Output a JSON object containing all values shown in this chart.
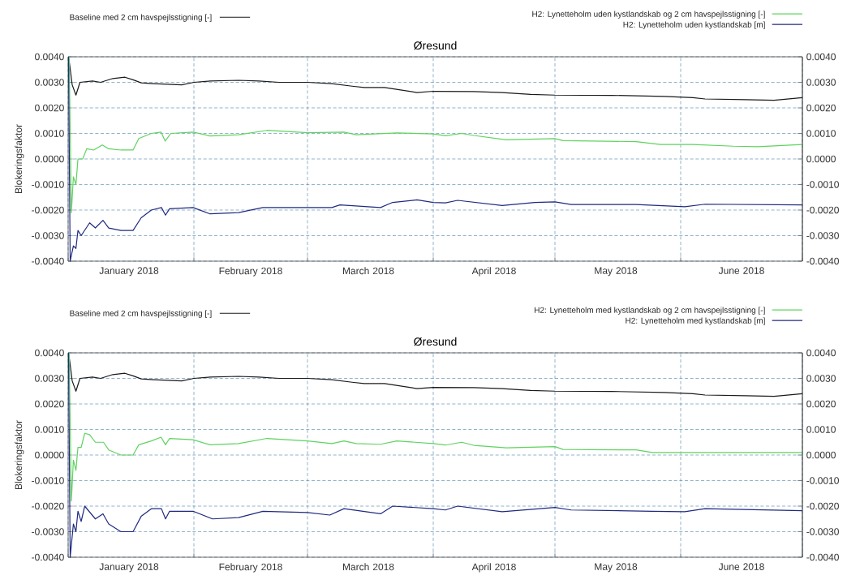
{
  "chart_data": [
    {
      "type": "line",
      "title": "Øresund",
      "ylabel": "Blokeringsfaktor",
      "grid": true,
      "legend": "top",
      "xlim": [
        "2018-01-01",
        "2018-07-01"
      ],
      "xticks": [
        {
          "value": "2018-01-01",
          "label": null
        },
        {
          "value": "2018-02-01",
          "label": null
        },
        {
          "value": "2018-03-01",
          "label": null
        },
        {
          "value": "2018-04-01",
          "label": null
        },
        {
          "value": "2018-05-01",
          "label": null
        },
        {
          "value": "2018-06-01",
          "label": null
        },
        {
          "value": "2018-07-01",
          "label": null
        },
        {
          "value": "2018-01-16",
          "label": "January 2018"
        },
        {
          "value": "2018-02-15",
          "label": "February 2018"
        },
        {
          "value": "2018-03-16",
          "label": "March 2018"
        },
        {
          "value": "2018-04-16",
          "label": "April 2018"
        },
        {
          "value": "2018-05-16",
          "label": "May 2018"
        },
        {
          "value": "2018-06-16",
          "label": "June 2018"
        }
      ],
      "ylim": [
        -0.004,
        0.004
      ],
      "yticks": [
        {
          "value": -0.004,
          "label": "-0.0040"
        },
        {
          "value": -0.003,
          "label": "-0.0030"
        },
        {
          "value": -0.002,
          "label": "-0.0020"
        },
        {
          "value": -0.001,
          "label": "-0.0010"
        },
        {
          "value": 0,
          "label": "0.0000"
        },
        {
          "value": 0.001,
          "label": "0.0010"
        },
        {
          "value": 0.002,
          "label": "0.0020"
        },
        {
          "value": 0.003,
          "label": "0.0030"
        },
        {
          "value": 0.004,
          "label": "0.0040"
        }
      ],
      "y2lim": [
        -0.004,
        0.004
      ],
      "y2ticks": [
        {
          "value": -0.004,
          "label": "-0.0040"
        },
        {
          "value": -0.003,
          "label": "-0.0030"
        },
        {
          "value": -0.002,
          "label": "-0.0020"
        },
        {
          "value": -0.001,
          "label": "-0.0010"
        },
        {
          "value": 0,
          "label": "0.0000"
        },
        {
          "value": 0.001,
          "label": "0.0010"
        },
        {
          "value": 0.002,
          "label": "0.0020"
        },
        {
          "value": 0.003,
          "label": "0.0030"
        },
        {
          "value": 0.004,
          "label": "0.0040"
        }
      ],
      "series": [
        {
          "name": "Baseline med 2 cm havspejlsstigning [-]",
          "color": "#1a1a1a",
          "x": [
            "2018-01-01T03:00",
            "2018-01-02",
            "2018-01-02T22:00",
            "2018-01-03T22:00",
            "2018-01-07",
            "2018-01-09",
            "2018-01-12",
            "2018-01-15",
            "2018-01-17",
            "2018-01-19",
            "2018-01-22",
            "2018-01-29",
            "2018-02-01",
            "2018-02-05",
            "2018-02-12",
            "2018-02-17",
            "2018-02-22",
            "2018-03-01",
            "2018-03-07",
            "2018-03-12",
            "2018-03-15",
            "2018-03-20",
            "2018-03-28",
            "2018-04-01",
            "2018-04-11",
            "2018-04-18",
            "2018-04-25",
            "2018-05-01",
            "2018-05-15",
            "2018-05-28",
            "2018-06-04",
            "2018-06-07",
            "2018-06-17",
            "2018-06-24",
            "2018-07-01"
          ],
          "values": [
            0.004,
            0.0029,
            0.0025,
            0.003,
            0.00305,
            0.003,
            0.00315,
            0.0032,
            0.0031,
            0.00298,
            0.00295,
            0.0029,
            0.003,
            0.00305,
            0.00308,
            0.00305,
            0.003,
            0.003,
            0.00295,
            0.00285,
            0.0028,
            0.0028,
            0.0026,
            0.00265,
            0.00264,
            0.0026,
            0.00253,
            0.0025,
            0.00249,
            0.00245,
            0.0024,
            0.00235,
            0.00232,
            0.0023,
            0.0024
          ]
        },
        {
          "name": "H2: Lynetteholm uden kystlandskab og 2 cm havspejlsstigning [-]",
          "color": "#5fd35f",
          "x": [
            "2018-01-01T06:00",
            "2018-01-01T19:00",
            "2018-01-02T07:00",
            "2018-01-02T22:00",
            "2018-01-03T10:00",
            "2018-01-04T14:00",
            "2018-01-05T14:00",
            "2018-01-07T07:00",
            "2018-01-09T10:00",
            "2018-01-11",
            "2018-01-14",
            "2018-01-17",
            "2018-01-18T10:00",
            "2018-01-21T12:00",
            "2018-01-23T22:00",
            "2018-01-24T22:00",
            "2018-01-26T07:00",
            "2018-01-31T19:00",
            "2018-02-05",
            "2018-02-12",
            "2018-02-19",
            "2018-03-01",
            "2018-03-10",
            "2018-03-13",
            "2018-03-23",
            "2018-04-01",
            "2018-04-04",
            "2018-04-08",
            "2018-04-11",
            "2018-04-19",
            "2018-05-01",
            "2018-05-03",
            "2018-05-21",
            "2018-05-27",
            "2018-06-04",
            "2018-06-14",
            "2018-06-20",
            "2018-07-01"
          ],
          "values": [
            0.004,
            -0.0021,
            -0.0007,
            -0.001,
            0.0,
            0.0,
            0.0004,
            0.00035,
            0.00055,
            0.0004,
            0.00035,
            0.00035,
            0.0008,
            0.001,
            0.00105,
            0.0007,
            0.001,
            0.00105,
            0.0009,
            0.00095,
            0.00112,
            0.00103,
            0.00105,
            0.00095,
            0.00102,
            0.00098,
            0.00091,
            0.001,
            0.00092,
            0.00075,
            0.0008,
            0.00072,
            0.00068,
            0.00057,
            0.00057,
            0.0005,
            0.00048,
            0.00057
          ]
        },
        {
          "name": "H2: Lynetteholm uden kystlandskab [m]",
          "color": "#1f2a80",
          "x": [
            "2018-01-01T02:00",
            "2018-01-01T12:00",
            "2018-01-02T07:00",
            "2018-01-02T22:00",
            "2018-01-03T10:00",
            "2018-01-04T05:00",
            "2018-01-06T07:00",
            "2018-01-07T17:00",
            "2018-01-09T14:00",
            "2018-01-11",
            "2018-01-14",
            "2018-01-17",
            "2018-01-19",
            "2018-01-21T12:00",
            "2018-01-24",
            "2018-01-25",
            "2018-01-26",
            "2018-01-31T19:00",
            "2018-02-05",
            "2018-02-12",
            "2018-02-18",
            "2018-03-01",
            "2018-03-07",
            "2018-03-09",
            "2018-03-19",
            "2018-03-22",
            "2018-03-28",
            "2018-04-01",
            "2018-04-04",
            "2018-04-07",
            "2018-04-18",
            "2018-04-26",
            "2018-05-01",
            "2018-05-05",
            "2018-05-21",
            "2018-06-02",
            "2018-06-07",
            "2018-07-01"
          ],
          "values": [
            0.004,
            -0.004,
            -0.0034,
            -0.0035,
            -0.0028,
            -0.003,
            -0.0025,
            -0.0027,
            -0.0024,
            -0.0027,
            -0.0028,
            -0.0028,
            -0.0023,
            -0.002,
            -0.0019,
            -0.0022,
            -0.00195,
            -0.0019,
            -0.00215,
            -0.0021,
            -0.0019,
            -0.0019,
            -0.0019,
            -0.0018,
            -0.0019,
            -0.0017,
            -0.0016,
            -0.0017,
            -0.00172,
            -0.00162,
            -0.00182,
            -0.0017,
            -0.00168,
            -0.00178,
            -0.00178,
            -0.00187,
            -0.00177,
            -0.0018
          ]
        }
      ]
    },
    {
      "type": "line",
      "title": "Øresund",
      "ylabel": "Blokeringsfaktor",
      "grid": true,
      "legend": "top",
      "xlim": [
        "2018-01-01",
        "2018-07-01"
      ],
      "xticks": [
        {
          "value": "2018-01-01",
          "label": null
        },
        {
          "value": "2018-02-01",
          "label": null
        },
        {
          "value": "2018-03-01",
          "label": null
        },
        {
          "value": "2018-04-01",
          "label": null
        },
        {
          "value": "2018-05-01",
          "label": null
        },
        {
          "value": "2018-06-01",
          "label": null
        },
        {
          "value": "2018-07-01",
          "label": null
        },
        {
          "value": "2018-01-16",
          "label": "January 2018"
        },
        {
          "value": "2018-02-15",
          "label": "February 2018"
        },
        {
          "value": "2018-03-16",
          "label": "March 2018"
        },
        {
          "value": "2018-04-16",
          "label": "April 2018"
        },
        {
          "value": "2018-05-16",
          "label": "May 2018"
        },
        {
          "value": "2018-06-16",
          "label": "June 2018"
        }
      ],
      "ylim": [
        -0.004,
        0.004
      ],
      "yticks": [
        {
          "value": -0.004,
          "label": "-0.0040"
        },
        {
          "value": -0.003,
          "label": "-0.0030"
        },
        {
          "value": -0.002,
          "label": "-0.0020"
        },
        {
          "value": -0.001,
          "label": "-0.0010"
        },
        {
          "value": 0,
          "label": "0.0000"
        },
        {
          "value": 0.001,
          "label": "0.0010"
        },
        {
          "value": 0.002,
          "label": "0.0020"
        },
        {
          "value": 0.003,
          "label": "0.0030"
        },
        {
          "value": 0.004,
          "label": "0.0040"
        }
      ],
      "y2lim": [
        -0.004,
        0.004
      ],
      "y2ticks": [
        {
          "value": -0.004,
          "label": "-0.0040"
        },
        {
          "value": -0.003,
          "label": "-0.0030"
        },
        {
          "value": -0.002,
          "label": "-0.0020"
        },
        {
          "value": -0.001,
          "label": "-0.0010"
        },
        {
          "value": 0,
          "label": "0.0000"
        },
        {
          "value": 0.001,
          "label": "0.0010"
        },
        {
          "value": 0.002,
          "label": "0.0020"
        },
        {
          "value": 0.003,
          "label": "0.0030"
        },
        {
          "value": 0.004,
          "label": "0.0040"
        }
      ],
      "series": [
        {
          "name": "Baseline med 2 cm havspejlsstigning [-]",
          "color": "#1a1a1a",
          "x": [
            "2018-01-01T03:00",
            "2018-01-02",
            "2018-01-02T22:00",
            "2018-01-03T22:00",
            "2018-01-07",
            "2018-01-09",
            "2018-01-12",
            "2018-01-15",
            "2018-01-17",
            "2018-01-19",
            "2018-01-22",
            "2018-01-29",
            "2018-02-01",
            "2018-02-05",
            "2018-02-12",
            "2018-02-17",
            "2018-02-22",
            "2018-03-01",
            "2018-03-07",
            "2018-03-12",
            "2018-03-15",
            "2018-03-20",
            "2018-03-28",
            "2018-04-01",
            "2018-04-11",
            "2018-04-18",
            "2018-04-25",
            "2018-05-01",
            "2018-05-15",
            "2018-05-28",
            "2018-06-04",
            "2018-06-07",
            "2018-06-17",
            "2018-06-24",
            "2018-07-01"
          ],
          "values": [
            0.004,
            0.0029,
            0.0025,
            0.003,
            0.00305,
            0.003,
            0.00315,
            0.0032,
            0.0031,
            0.00298,
            0.00295,
            0.0029,
            0.003,
            0.00305,
            0.00308,
            0.00305,
            0.003,
            0.003,
            0.00295,
            0.00285,
            0.0028,
            0.0028,
            0.0026,
            0.00265,
            0.00264,
            0.0026,
            0.00253,
            0.0025,
            0.00249,
            0.00245,
            0.0024,
            0.00235,
            0.00232,
            0.0023,
            0.0024
          ]
        },
        {
          "name": "H2: Lynetteholm med kystlandskab og 2 cm havspejlsstigning [-]",
          "color": "#5fd35f",
          "x": [
            "2018-01-01T06:00",
            "2018-01-01T19:00",
            "2018-01-02T07:00",
            "2018-01-02T22:00",
            "2018-01-03T10:00",
            "2018-01-04T05:00",
            "2018-01-05T02:00",
            "2018-01-06T07:00",
            "2018-01-07T17:00",
            "2018-01-09T17:00",
            "2018-01-11",
            "2018-01-14",
            "2018-01-17",
            "2018-01-18T10:00",
            "2018-01-21T12:00",
            "2018-01-23T22:00",
            "2018-01-25",
            "2018-01-26",
            "2018-01-31T19:00",
            "2018-02-05",
            "2018-02-12",
            "2018-02-19",
            "2018-03-01",
            "2018-03-07",
            "2018-03-10",
            "2018-03-13",
            "2018-03-19",
            "2018-03-23",
            "2018-04-01",
            "2018-04-04",
            "2018-04-08",
            "2018-04-11",
            "2018-04-19",
            "2018-05-01",
            "2018-05-03",
            "2018-05-21",
            "2018-05-25",
            "2018-06-04",
            "2018-06-10",
            "2018-06-24",
            "2018-07-01"
          ],
          "values": [
            0.004,
            -0.0018,
            -0.0002,
            -0.0006,
            0.0003,
            0.0003,
            0.00085,
            0.0008,
            0.0005,
            0.0005,
            0.0002,
            0.0,
            0.0,
            0.0004,
            0.00055,
            0.0007,
            0.0004,
            0.00065,
            0.0006,
            0.0004,
            0.00045,
            0.00065,
            0.00055,
            0.00045,
            0.00055,
            0.00045,
            0.00042,
            0.00055,
            0.00045,
            0.00039,
            0.0005,
            0.00038,
            0.00028,
            0.00033,
            0.00022,
            0.0002,
            0.0001,
            0.0001,
            0.0001,
            0.0001,
            0.0001
          ]
        },
        {
          "name": "H2: Lynetteholm med kystlandskab [m]",
          "color": "#1f2a80",
          "x": [
            "2018-01-01T02:00",
            "2018-01-01T12:00",
            "2018-01-02T07:00",
            "2018-01-02T22:00",
            "2018-01-03T10:00",
            "2018-01-04T05:00",
            "2018-01-05T02:00",
            "2018-01-07T17:00",
            "2018-01-09T14:00",
            "2018-01-11",
            "2018-01-14",
            "2018-01-17",
            "2018-01-19",
            "2018-01-21T12:00",
            "2018-01-24",
            "2018-01-25",
            "2018-01-26",
            "2018-01-31T19:00",
            "2018-02-05T14:00",
            "2018-02-12",
            "2018-02-18",
            "2018-03-01",
            "2018-03-06T12:00",
            "2018-03-10",
            "2018-03-19",
            "2018-03-22",
            "2018-04-01",
            "2018-04-04",
            "2018-04-07",
            "2018-04-18",
            "2018-05-01",
            "2018-05-05",
            "2018-05-25",
            "2018-06-02",
            "2018-06-07",
            "2018-07-01"
          ],
          "values": [
            0.004,
            -0.004,
            -0.0027,
            -0.003,
            -0.0022,
            -0.0026,
            -0.002,
            -0.0025,
            -0.0023,
            -0.0027,
            -0.003,
            -0.003,
            -0.0024,
            -0.0021,
            -0.0021,
            -0.0025,
            -0.0022,
            -0.0022,
            -0.0025,
            -0.00245,
            -0.0022,
            -0.00225,
            -0.00235,
            -0.0021,
            -0.0023,
            -0.002,
            -0.0021,
            -0.00215,
            -0.002,
            -0.00222,
            -0.00205,
            -0.00215,
            -0.0022,
            -0.00222,
            -0.0021,
            -0.00218
          ]
        }
      ]
    }
  ]
}
